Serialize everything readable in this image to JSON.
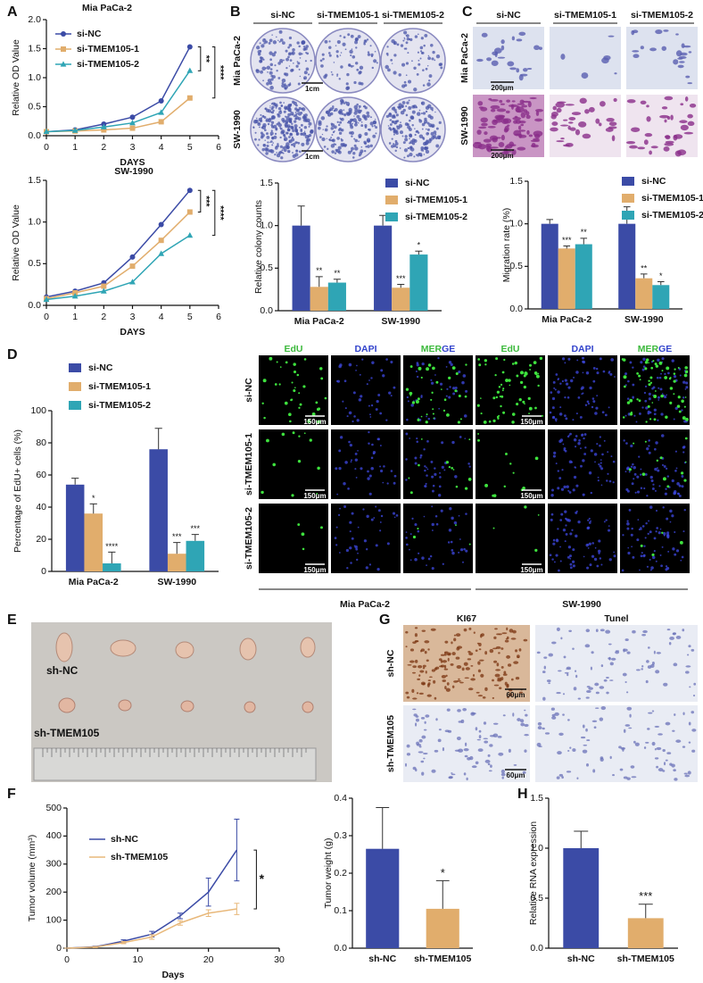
{
  "panel_labels": [
    "A",
    "B",
    "C",
    "D",
    "E",
    "F",
    "G",
    "H"
  ],
  "chart_data": [
    {
      "type": "line",
      "title": "Mia PaCa-2",
      "x_label": "DAYS",
      "y_label": "Relative OD Value",
      "markers": true,
      "x": [
        0,
        1,
        2,
        3,
        4,
        5
      ],
      "xlim": [
        0,
        6
      ],
      "xticks": [
        0,
        1,
        2,
        3,
        4,
        5,
        6
      ],
      "ylim": [
        0,
        2
      ],
      "yticks": [
        {
          "value": 0,
          "label": "0.0"
        },
        0.5,
        {
          "value": 1,
          "label": "1.0"
        },
        1.5,
        {
          "value": 2,
          "label": "2.0"
        }
      ],
      "series": [
        {
          "name": "si-NC",
          "color": "#3b4ba6",
          "values": [
            0.07,
            0.1,
            0.2,
            0.32,
            0.6,
            1.53
          ]
        },
        {
          "name": "si-TMEM105-1",
          "color": "#e1ad6c",
          "values": [
            0.07,
            0.08,
            0.1,
            0.13,
            0.24,
            0.65
          ],
          "significance": "****"
        },
        {
          "name": "si-TMEM105-2",
          "color": "#2fa5b5",
          "values": [
            0.07,
            0.09,
            0.15,
            0.22,
            0.4,
            1.12
          ],
          "significance": "**"
        }
      ]
    },
    {
      "type": "line",
      "title": "SW-1990",
      "x_label": "DAYS",
      "y_label": "Relative OD Value",
      "markers": true,
      "x": [
        0,
        1,
        2,
        3,
        4,
        5
      ],
      "xlim": [
        0,
        6
      ],
      "xticks": [
        0,
        1,
        2,
        3,
        4,
        5,
        6
      ],
      "ylim": [
        0,
        1.5
      ],
      "yticks": [
        {
          "value": 0,
          "label": "0.0"
        },
        0.5,
        {
          "value": 1,
          "label": "1.0"
        },
        1.5
      ],
      "series": [
        {
          "color": "#3b4ba6",
          "values": [
            0.1,
            0.17,
            0.27,
            0.58,
            0.97,
            1.38
          ]
        },
        {
          "color": "#e1ad6c",
          "values": [
            0.08,
            0.15,
            0.23,
            0.47,
            0.78,
            1.12
          ],
          "significance": "***"
        },
        {
          "color": "#2fa5b5",
          "values": [
            0.07,
            0.11,
            0.17,
            0.28,
            0.62,
            0.84
          ],
          "significance": "****"
        }
      ]
    },
    {
      "type": "bar",
      "y_label": "Relative colony counts",
      "categories": [
        "Mia PaCa-2",
        "SW-1990"
      ],
      "ylim": [
        0,
        1.5
      ],
      "yticks": [
        {
          "value": 0,
          "label": "0.0"
        },
        0.5,
        {
          "value": 1,
          "label": "1.0"
        },
        1.5
      ],
      "series": [
        {
          "name": "si-NC",
          "color": "#3b4ba6",
          "values": [
            1.0,
            1.0
          ],
          "errors": [
            0.23,
            0.12
          ]
        },
        {
          "name": "si-TMEM105-1",
          "color": "#e1ad6c",
          "values": [
            0.28,
            0.27
          ],
          "errors": [
            0.12,
            0.04
          ],
          "significance": [
            "**",
            "***"
          ]
        },
        {
          "name": "si-TMEM105-2",
          "color": "#2fa5b5",
          "values": [
            0.33,
            0.66
          ],
          "errors": [
            0.04,
            0.04
          ],
          "significance": [
            "**",
            "*"
          ]
        }
      ]
    },
    {
      "type": "bar",
      "y_label": "Migration rate (%)",
      "categories": [
        "Mia PaCa-2",
        "SW-1990"
      ],
      "ylim": [
        0,
        1.5
      ],
      "yticks": [
        {
          "value": 0,
          "label": "0.0"
        },
        0.5,
        {
          "value": 1,
          "label": "1.0"
        },
        1.5
      ],
      "series": [
        {
          "name": "si-NC",
          "color": "#3b4ba6",
          "values": [
            1.0,
            1.0
          ],
          "errors": [
            0.05,
            0.2
          ]
        },
        {
          "name": "si-TMEM105-1",
          "color": "#e1ad6c",
          "values": [
            0.71,
            0.36
          ],
          "errors": [
            0.03,
            0.05
          ],
          "significance": [
            "***",
            "**"
          ]
        },
        {
          "name": "si-TMEM105-2",
          "color": "#2fa5b5",
          "values": [
            0.76,
            0.28
          ],
          "errors": [
            0.07,
            0.04
          ],
          "significance": [
            "**",
            "*"
          ]
        }
      ]
    },
    {
      "type": "bar",
      "y_label": "Percentage of EdU+ cells (%)",
      "categories": [
        "Mia PaCa-2",
        "SW-1990"
      ],
      "ylim": [
        0,
        100
      ],
      "yticks": [
        0,
        20,
        40,
        60,
        80,
        100
      ],
      "series": [
        {
          "name": "si-NC",
          "color": "#3b4ba6",
          "values": [
            54,
            76
          ],
          "errors": [
            4,
            13
          ]
        },
        {
          "name": "si-TMEM105-1",
          "color": "#e1ad6c",
          "values": [
            36,
            11
          ],
          "errors": [
            6,
            7
          ],
          "significance": [
            "*",
            "***"
          ]
        },
        {
          "name": "si-TMEM105-2",
          "color": "#2fa5b5",
          "values": [
            5,
            19
          ],
          "errors": [
            7,
            4
          ],
          "significance": [
            "****",
            "***"
          ]
        }
      ]
    },
    {
      "type": "line",
      "x_label": "Days",
      "y_label": "Tumor volume (mm³)",
      "x": [
        0,
        4,
        8,
        12,
        16,
        20,
        24
      ],
      "xlim": [
        0,
        30
      ],
      "xticks": [
        0,
        10,
        20,
        30
      ],
      "ylim": [
        0,
        500
      ],
      "yticks": [
        0,
        100,
        200,
        300,
        400,
        500
      ],
      "series": [
        {
          "name": "sh-NC",
          "color": "#3b4ba6",
          "values": [
            0,
            5,
            25,
            50,
            115,
            200,
            350
          ],
          "errors": [
            0,
            2,
            5,
            10,
            10,
            50,
            110
          ]
        },
        {
          "name": "sh-TMEM105",
          "color": "#e8b87a",
          "values": [
            0,
            4,
            20,
            40,
            90,
            125,
            140
          ],
          "errors": [
            0,
            2,
            4,
            8,
            8,
            12,
            20
          ],
          "significance": "*"
        }
      ]
    },
    {
      "type": "bar",
      "y_label": "Tumor weight (g)",
      "categories": [
        "sh-NC",
        "sh-TMEM105"
      ],
      "values": [
        0.265,
        0.105
      ],
      "errors": [
        0.11,
        0.075
      ],
      "colors": [
        "#3b4ba6",
        "#e1ad6c"
      ],
      "significance": "*",
      "ylim": [
        0,
        0.4
      ],
      "yticks": [
        {
          "value": 0,
          "label": "0.0"
        },
        0.1,
        0.2,
        0.3,
        0.4
      ]
    },
    {
      "type": "bar",
      "y_label": "Relative RNA expression",
      "categories": [
        "sh-NC",
        "sh-TMEM105"
      ],
      "values": [
        1.0,
        0.3
      ],
      "errors": [
        0.17,
        0.14
      ],
      "colors": [
        "#3b4ba6",
        "#e1ad6c"
      ],
      "significance": "***",
      "ylim": [
        0,
        1.5
      ],
      "yticks": [
        {
          "value": 0,
          "label": "0.0"
        },
        0.5,
        {
          "value": 1,
          "label": "1.0"
        },
        1.5
      ]
    }
  ],
  "colony_assay": {
    "columns": [
      "si-NC",
      "si-TMEM105-1",
      "si-TMEM105-2"
    ],
    "rows": [
      "Mia PaCa-2",
      "SW-1990"
    ],
    "scale_bar": "1cm"
  },
  "migration_assay": {
    "columns": [
      "si-NC",
      "si-TMEM105-1",
      "si-TMEM105-2"
    ],
    "rows": [
      "Mia PaCa-2",
      "SW-1990"
    ],
    "scale_bar": "200μm"
  },
  "edu_staining": {
    "channels": [
      "EdU",
      "DAPI",
      "MERGE"
    ],
    "rows": [
      "si-NC",
      "si-TMEM105-1",
      "si-TMEM105-2"
    ],
    "scale_bar": "150μm",
    "groups": [
      "Mia PaCa-2",
      "SW-1990"
    ]
  },
  "tumor_photo": {
    "labels": [
      "sh-NC",
      "sh-TMEM105"
    ]
  },
  "ihc": {
    "columns": [
      "KI67",
      "Tunel"
    ],
    "rows": [
      "sh-NC",
      "sh-TMEM105"
    ],
    "scale_bar": "60μm"
  }
}
